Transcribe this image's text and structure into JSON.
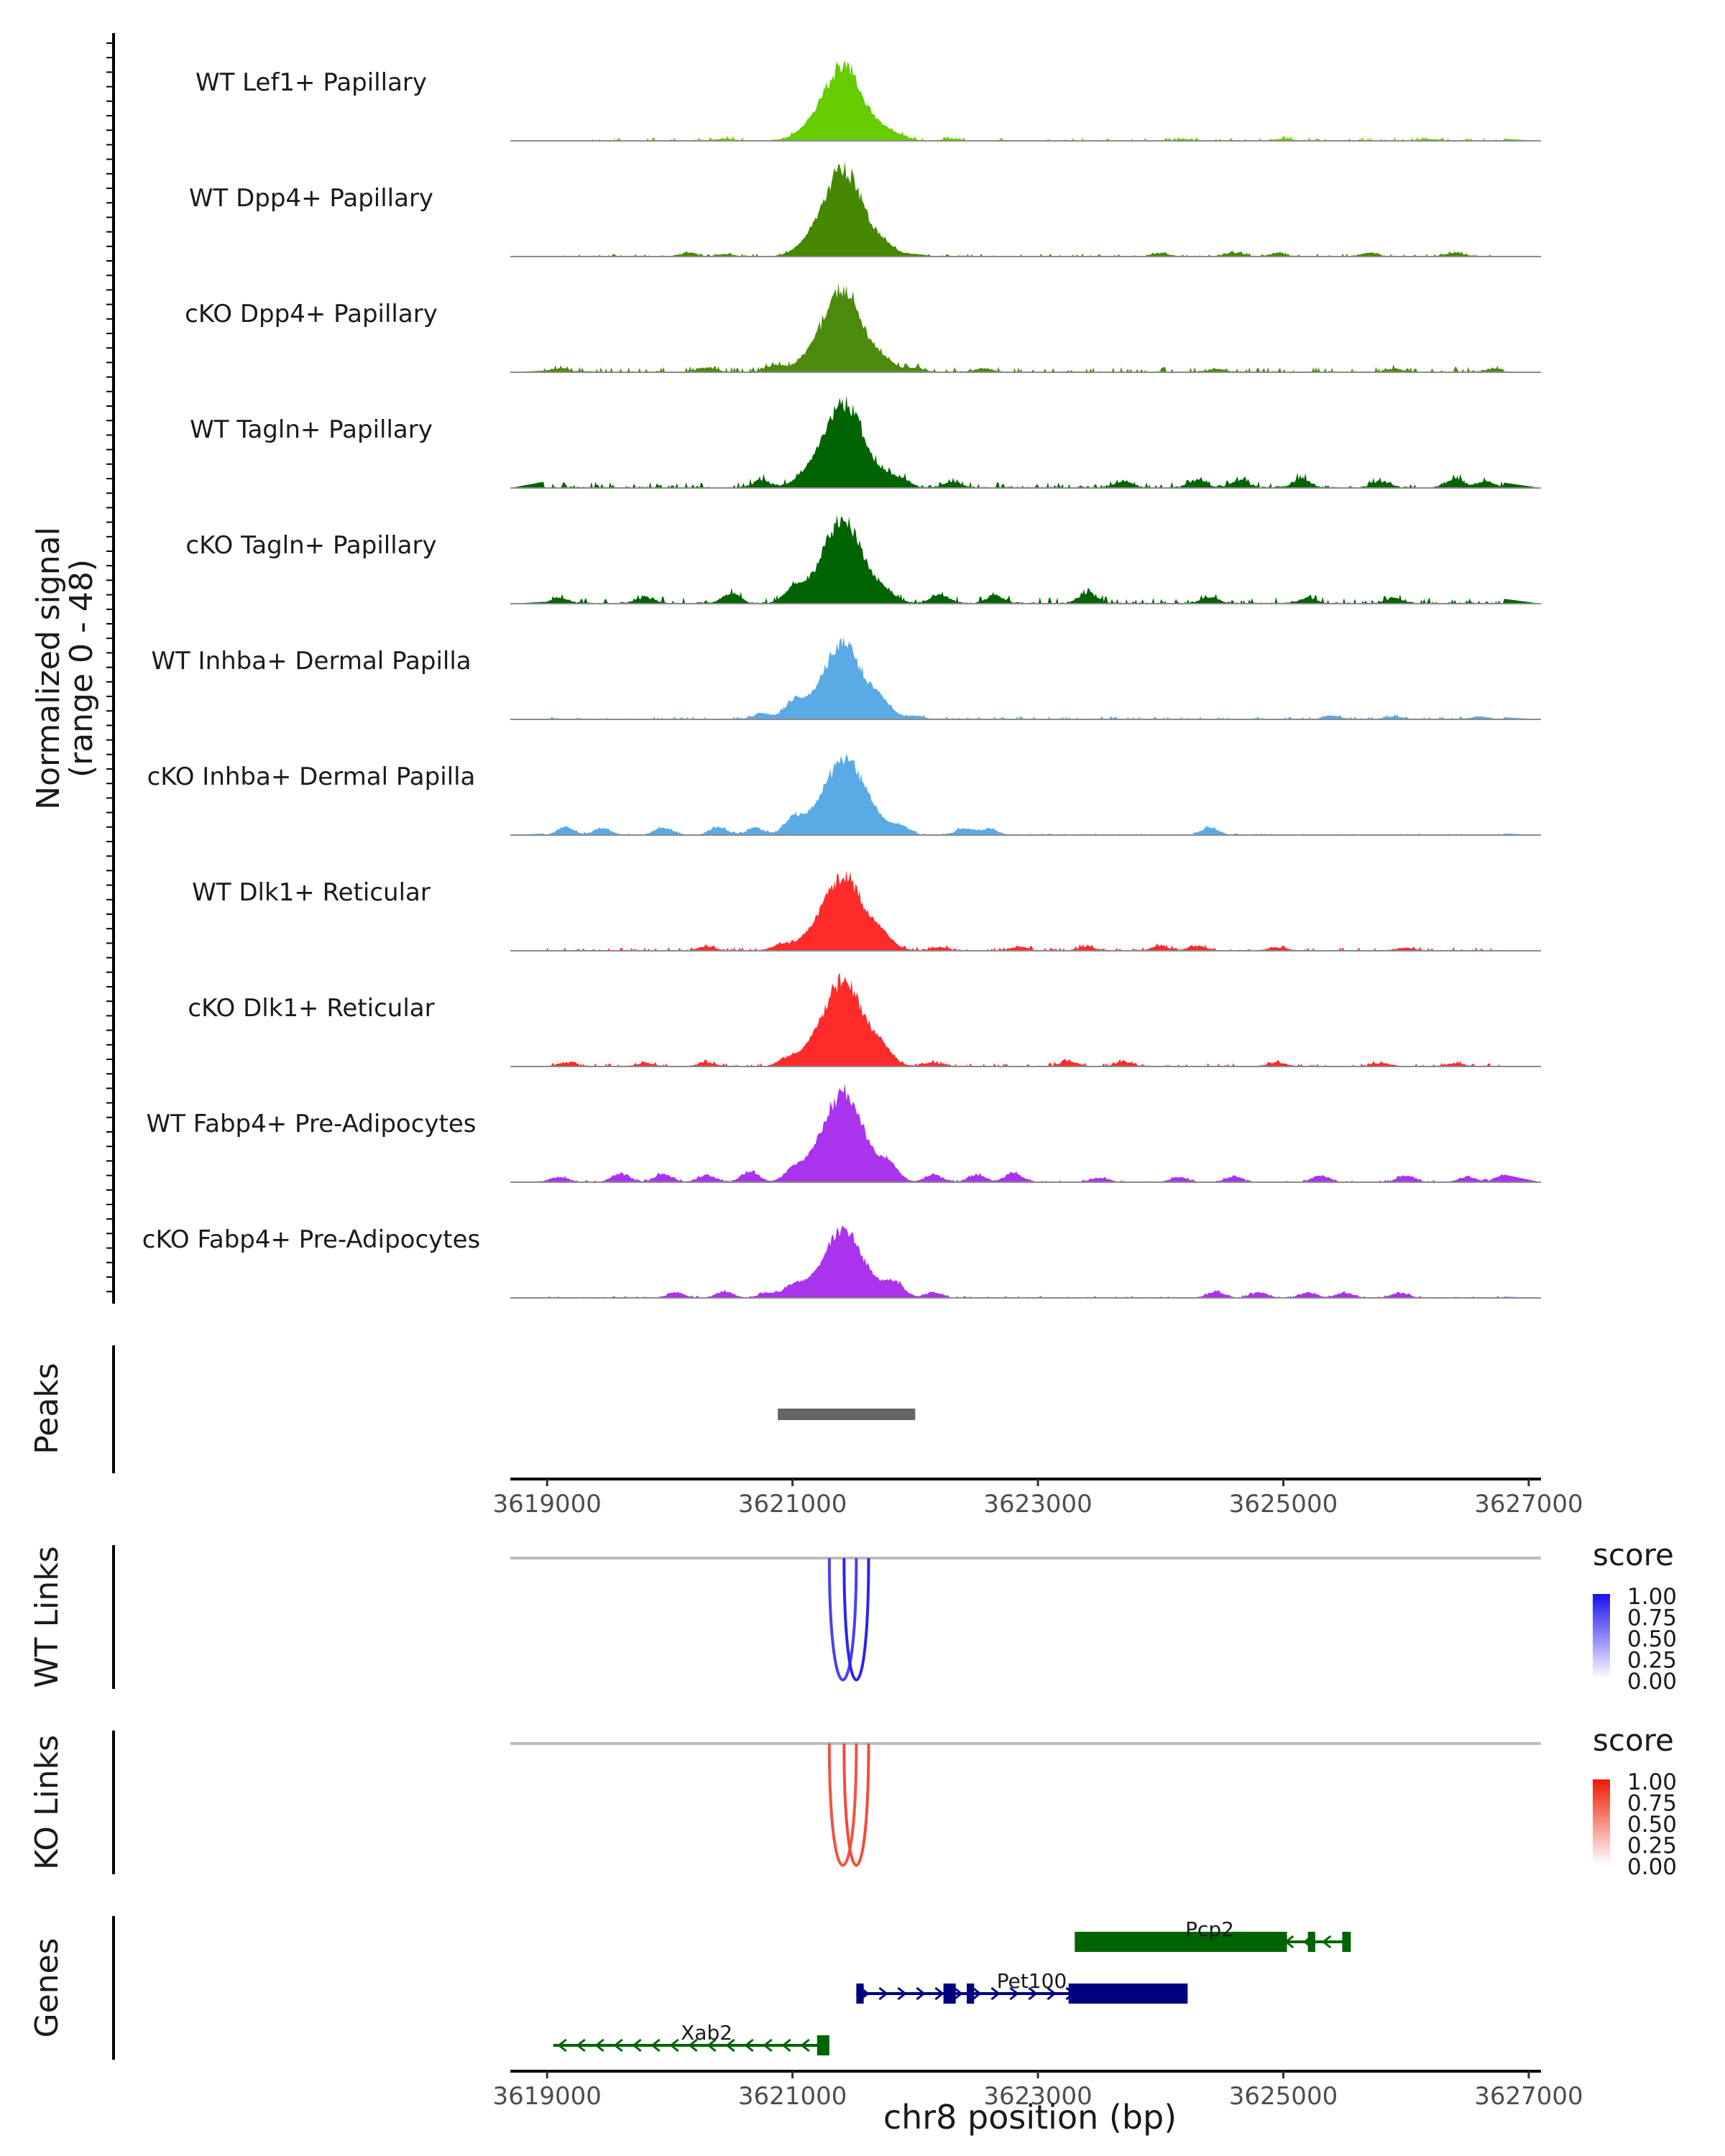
{
  "chart_data": {
    "type": "area",
    "x_range": [
      3618700,
      3627100
    ],
    "coverage": {
      "ylabel": "Normalized signal",
      "ylabel_range": "(range 0 - 48)",
      "ylim": [
        0,
        48
      ],
      "tracks": [
        {
          "name": "WT Lef1+ Papillary",
          "color": "#66cc00",
          "peak_max": 40,
          "tail": 1.6,
          "bumps": [
            [
              3620450,
              1.2
            ],
            [
              3621900,
              1.5
            ],
            [
              3622300,
              1.0
            ],
            [
              3624200,
              0.8
            ],
            [
              3625000,
              1.0
            ],
            [
              3626200,
              0.9
            ]
          ]
        },
        {
          "name": "WT Dpp4+ Papillary",
          "color": "#448800",
          "peak_max": 46,
          "tail": 1.4,
          "bumps": [
            [
              3620150,
              2.0
            ],
            [
              3620450,
              1.2
            ],
            [
              3622000,
              1.3
            ],
            [
              3624000,
              1.8
            ],
            [
              3624600,
              2.2
            ],
            [
              3624950,
              1.5
            ],
            [
              3625700,
              2.0
            ],
            [
              3626400,
              1.8
            ]
          ]
        },
        {
          "name": "cKO Dpp4+ Papillary",
          "color": "#4c8a0e",
          "peak_max": 44,
          "tail": 2.6,
          "bumps": [
            [
              3619100,
              2.0
            ],
            [
              3620300,
              2.4
            ],
            [
              3620850,
              3.5
            ],
            [
              3622000,
              2.2
            ],
            [
              3622550,
              2.0
            ],
            [
              3624450,
              1.6
            ],
            [
              3625900,
              1.8
            ],
            [
              3626700,
              1.5
            ]
          ]
        },
        {
          "name": "WT Tagln+ Papillary",
          "color": "#006400",
          "peak_max": 45,
          "tail": 3.0,
          "bumps": [
            [
              3620750,
              4.0
            ],
            [
              3621900,
              3.5
            ],
            [
              3622300,
              3.0
            ],
            [
              3623700,
              3.5
            ],
            [
              3624300,
              4.0
            ],
            [
              3624650,
              3.8
            ],
            [
              3625150,
              5.0
            ],
            [
              3625800,
              3.5
            ],
            [
              3626400,
              4.5
            ],
            [
              3626650,
              3.5
            ]
          ]
        },
        {
          "name": "cKO Tagln+ Papillary",
          "color": "#006400",
          "peak_max": 43,
          "tail": 3.2,
          "bumps": [
            [
              3619100,
              3.0
            ],
            [
              3619800,
              3.2
            ],
            [
              3620500,
              5.5
            ],
            [
              3621000,
              6.0
            ],
            [
              3622200,
              5.0
            ],
            [
              3622650,
              4.0
            ],
            [
              3623400,
              6.0
            ],
            [
              3624400,
              3.5
            ],
            [
              3625200,
              3.0
            ],
            [
              3625900,
              2.8
            ]
          ]
        },
        {
          "name": "WT Inhba+ Dermal Papilla",
          "color": "#5aaae6",
          "peak_max": 40,
          "tail": 1.4,
          "bumps": [
            [
              3620750,
              3.5
            ],
            [
              3621000,
              8.0
            ],
            [
              3621700,
              4.0
            ],
            [
              3622000,
              1.8
            ],
            [
              3625400,
              2.0
            ],
            [
              3625900,
              1.5
            ],
            [
              3626600,
              1.5
            ]
          ]
        },
        {
          "name": "cKO Inhba+ Dermal Papilla",
          "color": "#5aaae6",
          "peak_max": 40,
          "tail": 0.9,
          "bumps": [
            [
              3619150,
              4.0
            ],
            [
              3619450,
              4.0
            ],
            [
              3619950,
              4.0
            ],
            [
              3620400,
              4.5
            ],
            [
              3620700,
              4.0
            ],
            [
              3621000,
              7.0
            ],
            [
              3621600,
              5.0
            ],
            [
              3621900,
              3.8
            ],
            [
              3622400,
              3.5
            ],
            [
              3622600,
              3.5
            ],
            [
              3624400,
              4.0
            ]
          ]
        },
        {
          "name": "WT Dlk1+ Reticular",
          "color": "#ff2a2a",
          "peak_max": 40,
          "tail": 1.8,
          "bumps": [
            [
              3620300,
              2.2
            ],
            [
              3620900,
              3.0
            ],
            [
              3621700,
              3.5
            ],
            [
              3622200,
              1.8
            ],
            [
              3622850,
              2.0
            ],
            [
              3623400,
              2.2
            ],
            [
              3624000,
              2.5
            ],
            [
              3624300,
              2.5
            ],
            [
              3624950,
              1.8
            ],
            [
              3626000,
              1.6
            ]
          ]
        },
        {
          "name": "cKO Dlk1+ Reticular",
          "color": "#ff2a2a",
          "peak_max": 46,
          "tail": 1.6,
          "bumps": [
            [
              3619150,
              2.0
            ],
            [
              3619800,
              1.8
            ],
            [
              3620300,
              2.2
            ],
            [
              3620950,
              3.5
            ],
            [
              3621700,
              4.0
            ],
            [
              3622150,
              2.0
            ],
            [
              3623250,
              2.8
            ],
            [
              3623700,
              2.5
            ],
            [
              3624950,
              2.0
            ],
            [
              3625800,
              1.8
            ],
            [
              3626400,
              1.6
            ]
          ]
        },
        {
          "name": "WT Fabp4+ Pre-Adipocytes",
          "color": "#aa33ee",
          "peak_max": 48,
          "tail": 1.0,
          "bumps": [
            [
              3619100,
              3.0
            ],
            [
              3619600,
              5.0
            ],
            [
              3619950,
              4.5
            ],
            [
              3620300,
              3.8
            ],
            [
              3620650,
              6.0
            ],
            [
              3621000,
              5.0
            ],
            [
              3621800,
              5.0
            ],
            [
              3622150,
              4.0
            ],
            [
              3622500,
              4.0
            ],
            [
              3622800,
              5.0
            ],
            [
              3623500,
              2.5
            ],
            [
              3624150,
              2.8
            ],
            [
              3624600,
              3.0
            ],
            [
              3625300,
              3.5
            ],
            [
              3626000,
              3.8
            ],
            [
              3626500,
              3.0
            ],
            [
              3626800,
              3.5
            ]
          ]
        },
        {
          "name": "cKO Fabp4+ Pre-Adipocytes",
          "color": "#aa33ee",
          "peak_max": 36,
          "tail": 0.9,
          "bumps": [
            [
              3620050,
              3.0
            ],
            [
              3620450,
              3.5
            ],
            [
              3620800,
              3.0
            ],
            [
              3621000,
              5.0
            ],
            [
              3621850,
              6.0
            ],
            [
              3622150,
              3.0
            ],
            [
              3624450,
              3.5
            ],
            [
              3624800,
              3.0
            ],
            [
              3625200,
              2.8
            ],
            [
              3625500,
              2.8
            ],
            [
              3625950,
              2.8
            ]
          ]
        }
      ],
      "peak_center": 3621420
    },
    "peaks": {
      "label": "Peaks",
      "regions": [
        [
          3620880,
          3622000
        ]
      ]
    },
    "axis": {
      "ticks": [
        3619000,
        3621000,
        3623000,
        3625000,
        3627000
      ]
    },
    "links": [
      {
        "label": "WT Links",
        "color_scale": "blue",
        "colors": [
          "#ffffff",
          "#1a10ee"
        ],
        "legend_title": "score",
        "legend_ticks": [
          "1.00",
          "0.75",
          "0.50",
          "0.25",
          "0.00"
        ],
        "arcs": [
          {
            "start": 3621300,
            "end": 3621520,
            "score": 0.8
          },
          {
            "start": 3621420,
            "end": 3621620,
            "score": 0.92
          }
        ]
      },
      {
        "label": "KO Links",
        "color_scale": "red",
        "colors": [
          "#ffffff",
          "#ee1a00"
        ],
        "legend_title": "score",
        "legend_ticks": [
          "1.00",
          "0.75",
          "0.50",
          "0.25",
          "0.00"
        ],
        "arcs": [
          {
            "start": 3621300,
            "end": 3621520,
            "score": 0.75
          },
          {
            "start": 3621420,
            "end": 3621620,
            "score": 0.78
          }
        ]
      }
    ],
    "genes": {
      "label": "Genes",
      "items": [
        {
          "name": "Pcp2",
          "strand": "-",
          "color": "#006400",
          "start": 3623300,
          "end": 3625550,
          "row": 0,
          "exons": [
            [
              3623300,
              3625030
            ],
            [
              3625200,
              3625260
            ],
            [
              3625480,
              3625550
            ]
          ]
        },
        {
          "name": "Pet100",
          "strand": "+",
          "color": "#000080",
          "start": 3621520,
          "end": 3624220,
          "row": 1,
          "exons": [
            [
              3621520,
              3621580
            ],
            [
              3622230,
              3622330
            ],
            [
              3622420,
              3622480
            ],
            [
              3623250,
              3624220
            ]
          ]
        },
        {
          "name": "Xab2",
          "strand": "-",
          "color": "#006400",
          "start": 3619050,
          "end": 3621300,
          "row": 2,
          "exons": [
            [
              3621200,
              3621300
            ]
          ]
        }
      ]
    },
    "xlabel": "chr8 position (bp)"
  }
}
